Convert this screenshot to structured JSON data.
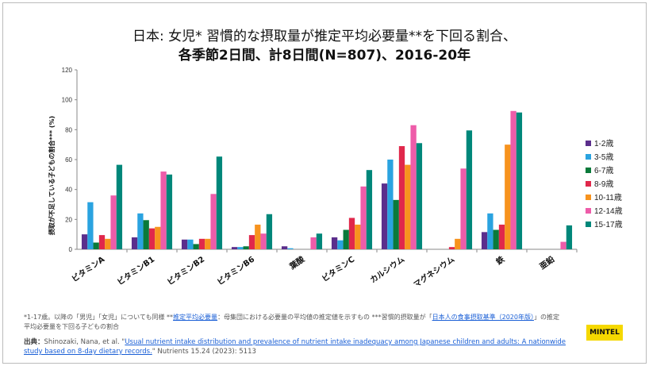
{
  "title_line1": "日本: 女児*  習慣的な摂取量が推定平均必要量**を下回る割合、",
  "title_line2": "各季節2日間、計8日間(N=807)、2016-20年",
  "chart_data": {
    "type": "bar",
    "ylabel": "摂取が不足している子どもの割合*** (%)",
    "ylim": [
      0,
      120
    ],
    "yticks": [
      0,
      20,
      40,
      60,
      80,
      100,
      120
    ],
    "grid": false,
    "legend_position": "right",
    "categories": [
      "ビタミンA",
      "ビタミンB1",
      "ビタミンB2",
      "ビタミンB6",
      "葉酸",
      "ビタミンC",
      "カルシウム",
      "マグネシウム",
      "鉄",
      "亜鉛"
    ],
    "series": [
      {
        "name": "1-2歳",
        "color": "#5b2e8c",
        "values": [
          10,
          8,
          6.5,
          1.5,
          2,
          8,
          44,
          0,
          11.5,
          0
        ]
      },
      {
        "name": "3-5歳",
        "color": "#2aa3e0",
        "values": [
          31.5,
          24,
          6.5,
          1.5,
          0.7,
          6,
          60,
          0,
          24,
          0
        ]
      },
      {
        "name": "6-7歳",
        "color": "#0a7a3a",
        "values": [
          4.5,
          19.5,
          3.5,
          2,
          0,
          13,
          33,
          0,
          13,
          0
        ]
      },
      {
        "name": "8-9歳",
        "color": "#e0284b",
        "values": [
          9.5,
          14,
          7,
          9.5,
          0,
          21,
          69,
          1.5,
          16.5,
          0
        ]
      },
      {
        "name": "10-11歳",
        "color": "#f7931e",
        "values": [
          7,
          15,
          7,
          16.5,
          0,
          16.5,
          56.5,
          7,
          70,
          0
        ]
      },
      {
        "name": "12-14歳",
        "color": "#ee5ca9",
        "values": [
          36,
          52,
          37,
          10.5,
          8,
          42,
          83,
          54,
          92.5,
          5
        ]
      },
      {
        "name": "15-17歳",
        "color": "#00877a",
        "values": [
          56.5,
          50,
          62,
          23.5,
          10.5,
          53,
          71,
          79.5,
          91.5,
          16
        ]
      }
    ]
  },
  "notes": {
    "part1": "*1-17歳。以降の「男児」「女児」についても同様 **",
    "link1": "推定平均必要量",
    "part2": "：母集団における必要量の平均値の推定値を示すもの ***習慣的摂取量が「",
    "link2": "日本人の食事摂取基準（2020年版）",
    "part3": "」の推定平均必要量を下回る子どもの割合"
  },
  "source": {
    "label": "出典：",
    "authors": "Shinozaki, Nana, et al. \"",
    "link": "Usual nutrient intake distribution and prevalence of nutrient intake inadequacy among Japanese children and adults: A nationwide study based on 8-day dietary records.",
    "citation": "\" Nutrients 15.24 (2023): 5113"
  },
  "logo": "MINTEL"
}
